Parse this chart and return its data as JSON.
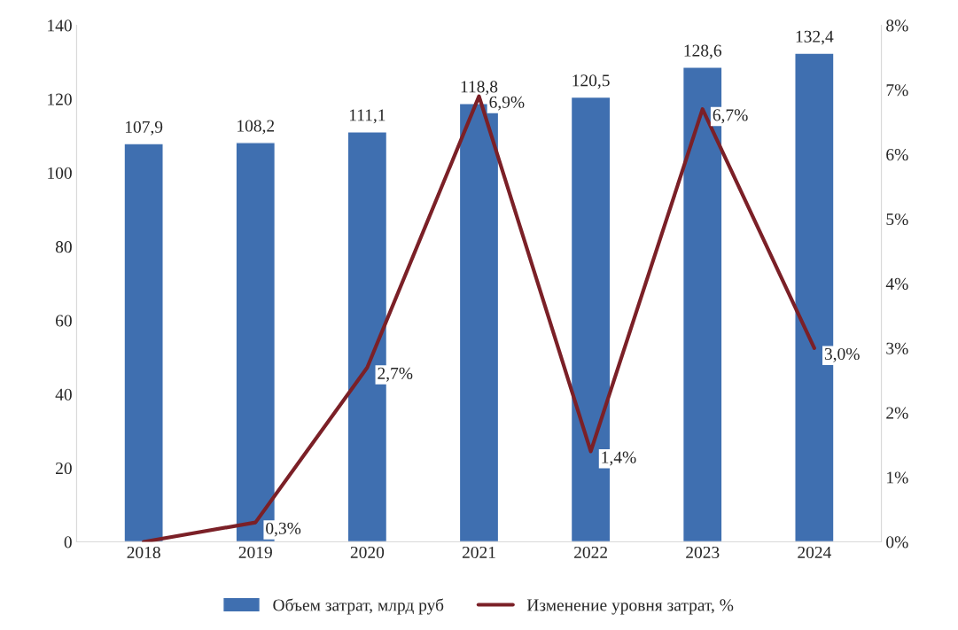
{
  "chart_data": {
    "type": "bar",
    "categories": [
      "2018",
      "2019",
      "2020",
      "2021",
      "2022",
      "2023",
      "2024"
    ],
    "series": [
      {
        "name": "Объем затрат, млрд руб",
        "color": "#3f6fb0",
        "values": [
          107.9,
          108.2,
          111.1,
          118.8,
          120.5,
          128.6,
          132.4
        ],
        "value_labels": [
          "107,9",
          "108,2",
          "111,1",
          "118,8",
          "120,5",
          "128,6",
          "132,4"
        ]
      },
      {
        "name": "Изменение уровня затрат, %",
        "type": "line",
        "axis": "y2",
        "color": "#7b2027",
        "values": [
          0,
          0.3,
          2.7,
          6.9,
          1.4,
          6.7,
          3.0
        ],
        "value_labels": [
          null,
          "0,3%",
          "2,7%",
          "6,9%",
          "1,4%",
          "6,7%",
          "3,0%"
        ]
      }
    ],
    "ylim": [
      0,
      140
    ],
    "yticks": [
      0,
      20,
      40,
      60,
      80,
      100,
      120,
      140
    ],
    "y2lim": [
      0,
      8
    ],
    "y2ticks": [
      {
        "value": 0,
        "label": "0%"
      },
      {
        "value": 1,
        "label": "1%"
      },
      {
        "value": 2,
        "label": "2%"
      },
      {
        "value": 3,
        "label": "3%"
      },
      {
        "value": 4,
        "label": "4%"
      },
      {
        "value": 5,
        "label": "5%"
      },
      {
        "value": 6,
        "label": "6%"
      },
      {
        "value": 7,
        "label": "7%"
      },
      {
        "value": 8,
        "label": "8%"
      }
    ],
    "grid": false,
    "legend": "bottom",
    "marker": "none"
  }
}
